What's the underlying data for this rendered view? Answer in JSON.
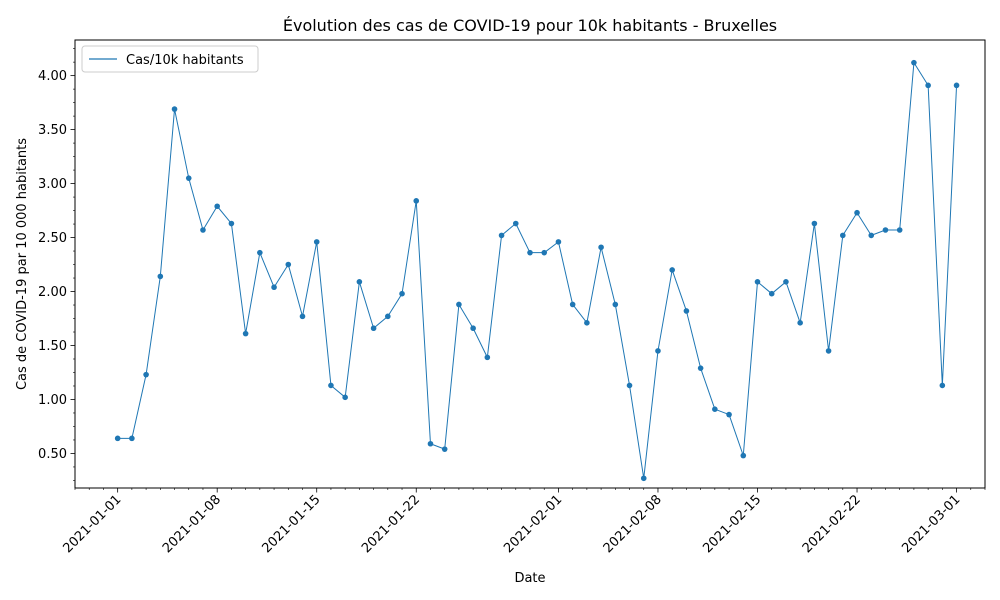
{
  "chart_data": {
    "type": "line",
    "title": "Évolution des cas de COVID-19 pour 10k habitants - Bruxelles",
    "xlabel": "Date",
    "ylabel": "Cas de COVID-19 par 10 000 habitants",
    "x_ticks": [
      "2021-01-01",
      "2021-01-08",
      "2021-01-15",
      "2021-01-22",
      "2021-02-01",
      "2021-02-08",
      "2021-02-15",
      "2021-02-22",
      "2021-03-01"
    ],
    "y_ticks": [
      "0.50",
      "1.00",
      "1.50",
      "2.00",
      "2.50",
      "3.00",
      "3.50",
      "4.00"
    ],
    "xlim": [
      "2020-12-29",
      "2021-03-03"
    ],
    "ylim": [
      0.18,
      4.33
    ],
    "grid": false,
    "legend_position": "upper-left",
    "series": [
      {
        "name": "Cas/10k habitants",
        "color": "#1f77b4",
        "x": [
          "2021-01-01",
          "2021-01-02",
          "2021-01-03",
          "2021-01-04",
          "2021-01-05",
          "2021-01-06",
          "2021-01-07",
          "2021-01-08",
          "2021-01-09",
          "2021-01-10",
          "2021-01-11",
          "2021-01-12",
          "2021-01-13",
          "2021-01-14",
          "2021-01-15",
          "2021-01-16",
          "2021-01-17",
          "2021-01-18",
          "2021-01-19",
          "2021-01-20",
          "2021-01-21",
          "2021-01-22",
          "2021-01-23",
          "2021-01-24",
          "2021-01-25",
          "2021-01-26",
          "2021-01-27",
          "2021-01-28",
          "2021-01-29",
          "2021-01-30",
          "2021-01-31",
          "2021-02-01",
          "2021-02-02",
          "2021-02-03",
          "2021-02-04",
          "2021-02-05",
          "2021-02-06",
          "2021-02-07",
          "2021-02-08",
          "2021-02-09",
          "2021-02-10",
          "2021-02-11",
          "2021-02-12",
          "2021-02-13",
          "2021-02-14",
          "2021-02-15",
          "2021-02-16",
          "2021-02-17",
          "2021-02-18",
          "2021-02-19",
          "2021-02-20",
          "2021-02-21",
          "2021-02-22",
          "2021-02-23",
          "2021-02-24",
          "2021-02-25",
          "2021-02-26",
          "2021-02-27",
          "2021-02-28",
          "2021-03-01"
        ],
        "values": [
          0.64,
          0.64,
          1.23,
          2.14,
          3.69,
          3.05,
          2.57,
          2.79,
          2.63,
          1.61,
          2.36,
          2.04,
          2.25,
          1.77,
          2.46,
          1.13,
          1.02,
          2.09,
          1.66,
          1.77,
          1.98,
          2.84,
          0.59,
          0.54,
          1.88,
          1.66,
          1.39,
          2.52,
          2.63,
          2.36,
          2.36,
          2.46,
          1.88,
          1.71,
          2.41,
          1.88,
          1.13,
          0.27,
          1.45,
          2.2,
          1.82,
          1.29,
          0.91,
          0.86,
          0.48,
          2.09,
          1.98,
          2.09,
          1.71,
          2.63,
          1.45,
          2.52,
          2.73,
          2.52,
          2.57,
          2.57,
          4.12,
          3.91,
          1.13,
          3.91
        ]
      }
    ]
  }
}
